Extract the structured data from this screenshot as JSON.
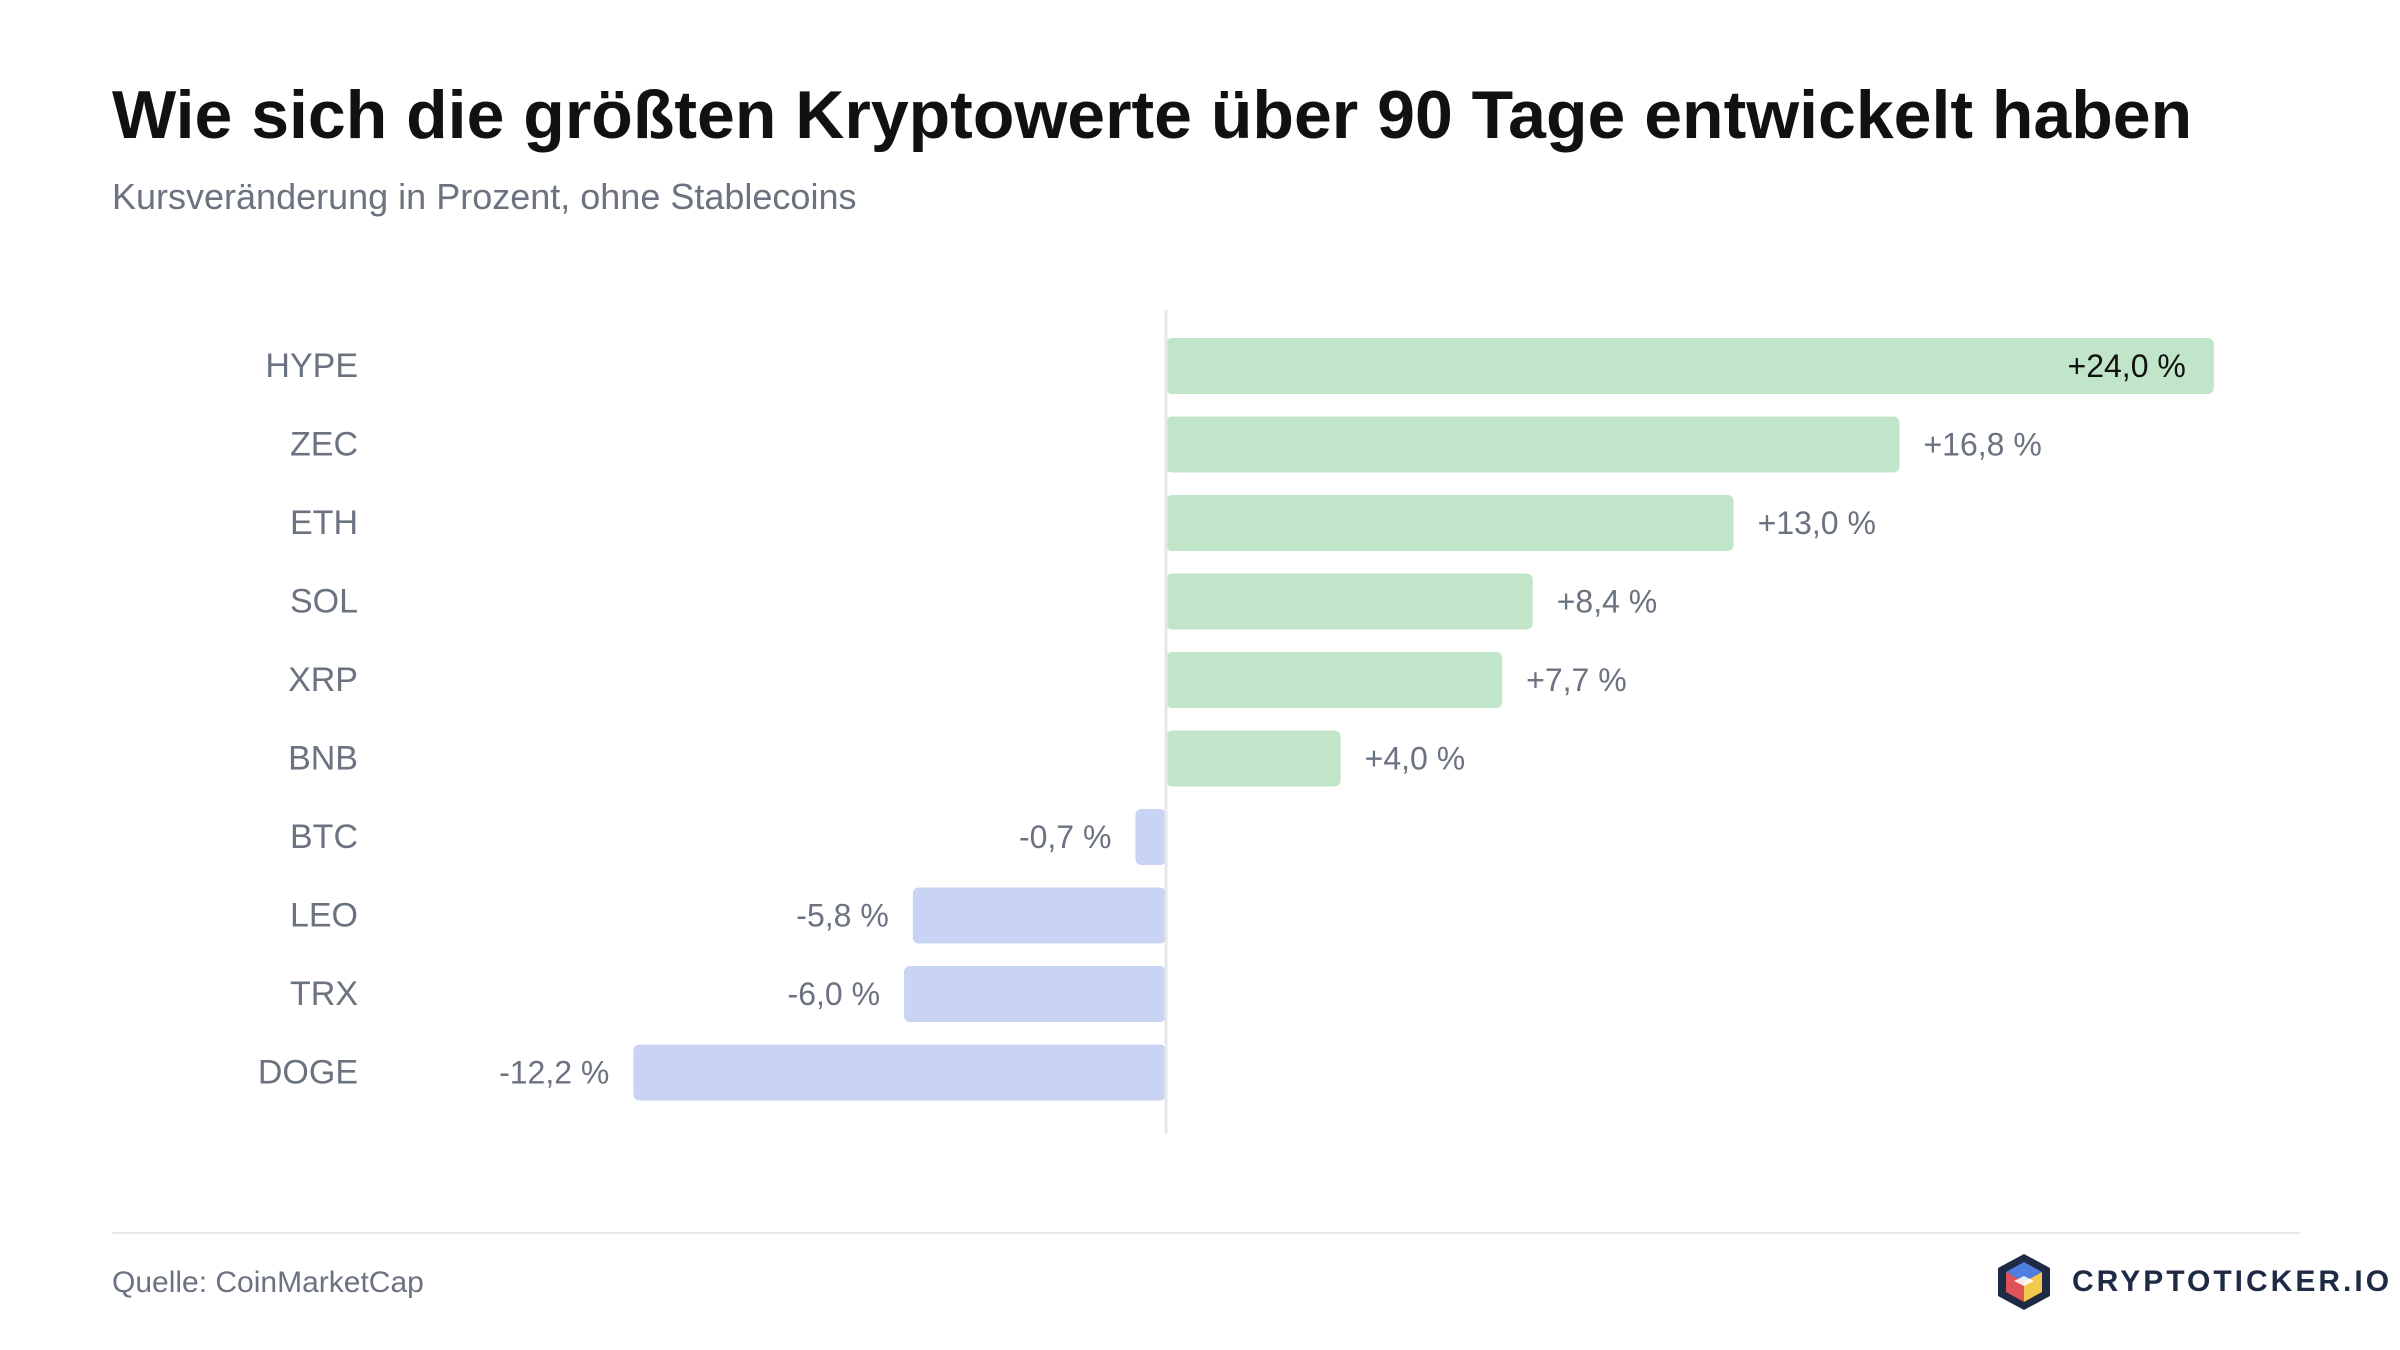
{
  "header": {
    "title": "Wie sich die größten Kryptowerte über 90 Tage entwickelt haben",
    "subtitle": "Kursveränderung in Prozent, ohne Stablecoins"
  },
  "footer": {
    "source": "Quelle: CoinMarketCap",
    "brand": "CRYPTOTICKER.IO",
    "brand_icon": "cube-logo-icon"
  },
  "colors": {
    "positive_bar": "#c1e5c8",
    "negative_bar": "#c9d4f5",
    "label_text": "#6b7280",
    "inside_label_text": "#111111",
    "axis": "#e5e7eb",
    "brand_text": "#1f2a44"
  },
  "chart_data": {
    "type": "bar",
    "orientation": "horizontal",
    "categories": [
      "HYPE",
      "ZEC",
      "ETH",
      "SOL",
      "XRP",
      "BNB",
      "BTC",
      "LEO",
      "TRX",
      "DOGE"
    ],
    "values": [
      24.0,
      16.8,
      13.0,
      8.4,
      7.7,
      4.0,
      -0.7,
      -5.8,
      -6.0,
      -12.2
    ],
    "value_labels": [
      "+24,0 %",
      "+16,8 %",
      "+13,0 %",
      "+8,4 %",
      "+7,7 %",
      "+4,0 %",
      "-0,7 %",
      "-5,8 %",
      "-6,0 %",
      "-12,2 %"
    ],
    "title": "Wie sich die größten Kryptowerte über 90 Tage entwickelt haben",
    "subtitle": "Kursveränderung in Prozent, ohne Stablecoins",
    "xlabel": "",
    "ylabel": "",
    "xlim": [
      -24,
      26
    ],
    "grid": false,
    "legend": "none"
  }
}
